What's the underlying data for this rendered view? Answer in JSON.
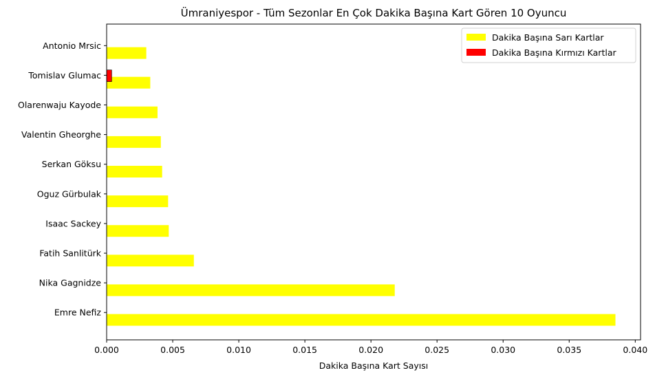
{
  "chart_data": {
    "type": "bar",
    "orientation": "horizontal",
    "title": "Ümraniyespor - Tüm Sezonlar En Çok Dakika Başına Kart Gören 10 Oyuncu",
    "xlabel": "Dakika Başına Kart Sayısı",
    "ylabel": "",
    "xlim": [
      0,
      0.0404
    ],
    "xticks": [
      "0.000",
      "0.005",
      "0.010",
      "0.015",
      "0.020",
      "0.025",
      "0.030",
      "0.035",
      "0.040"
    ],
    "grid": false,
    "legend_position": "top-right",
    "categories": [
      "Emre Nefiz",
      "Nika Gagnidze",
      "Fatih Sanlitürk",
      "Isaac Sackey",
      "Oguz Gürbulak",
      "Serkan Göksu",
      "Valentin Gheorghe",
      "Olarenwaju Kayode",
      "Tomislav Glumac",
      "Antonio Mrsic"
    ],
    "series": [
      {
        "name": "Dakika Başına Sarı Kartlar",
        "color": "#ffff00",
        "values": [
          0.0385,
          0.0218,
          0.0066,
          0.0047,
          0.00465,
          0.0042,
          0.0041,
          0.00385,
          0.0033,
          0.003
        ]
      },
      {
        "name": "Dakika Başına Kırmızı Kartlar",
        "color": "#ff0000",
        "values": [
          0,
          0,
          0,
          0,
          0,
          0,
          0,
          0,
          0.00038,
          0
        ]
      }
    ]
  }
}
